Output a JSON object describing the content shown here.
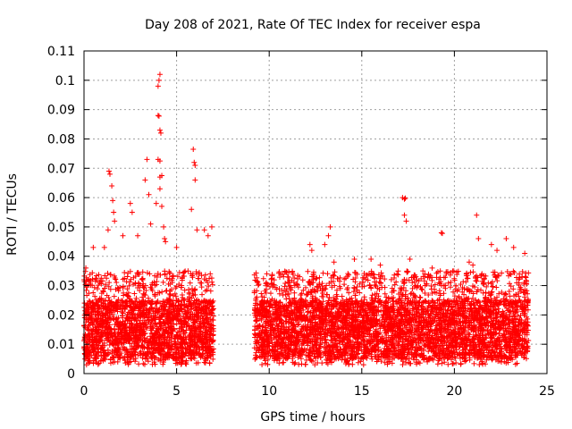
{
  "chart_data": {
    "type": "scatter",
    "title": "Day 208 of 2021, Rate Of TEC Index for receiver espa",
    "xlabel": "GPS time / hours",
    "ylabel": "ROTI / TECUs",
    "xlim": [
      0,
      25
    ],
    "ylim": [
      0,
      0.11
    ],
    "x_ticks": [
      0,
      5,
      10,
      15,
      20,
      25
    ],
    "x_tick_labels": [
      "0",
      "5",
      "10",
      "15",
      "20",
      "25"
    ],
    "y_ticks": [
      0,
      0.01,
      0.02,
      0.03,
      0.04,
      0.05,
      0.06,
      0.07,
      0.08,
      0.09,
      0.1,
      0.11
    ],
    "y_tick_labels": [
      "0",
      "0.01",
      "0.02",
      "0.03",
      "0.04",
      "0.05",
      "0.06",
      "0.07",
      "0.08",
      "0.09",
      "0.1",
      "0.11"
    ],
    "grid": true,
    "marker": "+",
    "color": "#ff0000",
    "series": [
      {
        "name": "ROTI",
        "segments": [
          {
            "x_range": [
              0.0,
              7.0
            ],
            "typical_range": [
              0.005,
              0.025
            ]
          },
          {
            "x_range": [
              9.2,
              24.0
            ],
            "typical_range": [
              0.005,
              0.025
            ]
          }
        ],
        "notable_points": [
          {
            "x": 0.1,
            "y": 0.036
          },
          {
            "x": 0.5,
            "y": 0.043
          },
          {
            "x": 1.3,
            "y": 0.049
          },
          {
            "x": 1.35,
            "y": 0.069
          },
          {
            "x": 1.4,
            "y": 0.068
          },
          {
            "x": 1.5,
            "y": 0.064
          },
          {
            "x": 1.55,
            "y": 0.059
          },
          {
            "x": 1.6,
            "y": 0.055
          },
          {
            "x": 1.65,
            "y": 0.052
          },
          {
            "x": 1.1,
            "y": 0.043
          },
          {
            "x": 2.1,
            "y": 0.047
          },
          {
            "x": 2.5,
            "y": 0.058
          },
          {
            "x": 2.6,
            "y": 0.055
          },
          {
            "x": 2.9,
            "y": 0.047
          },
          {
            "x": 3.3,
            "y": 0.066
          },
          {
            "x": 3.4,
            "y": 0.073
          },
          {
            "x": 3.5,
            "y": 0.061
          },
          {
            "x": 3.6,
            "y": 0.051
          },
          {
            "x": 3.9,
            "y": 0.058
          },
          {
            "x": 4.0,
            "y": 0.098
          },
          {
            "x": 4.05,
            "y": 0.1
          },
          {
            "x": 4.1,
            "y": 0.102
          },
          {
            "x": 4.0,
            "y": 0.088
          },
          {
            "x": 4.05,
            "y": 0.0878
          },
          {
            "x": 4.1,
            "y": 0.083
          },
          {
            "x": 4.15,
            "y": 0.082
          },
          {
            "x": 4.0,
            "y": 0.073
          },
          {
            "x": 4.1,
            "y": 0.0725
          },
          {
            "x": 4.1,
            "y": 0.067
          },
          {
            "x": 4.2,
            "y": 0.0675
          },
          {
            "x": 4.1,
            "y": 0.063
          },
          {
            "x": 4.2,
            "y": 0.057
          },
          {
            "x": 4.3,
            "y": 0.05
          },
          {
            "x": 4.35,
            "y": 0.046
          },
          {
            "x": 4.4,
            "y": 0.045
          },
          {
            "x": 5.0,
            "y": 0.043
          },
          {
            "x": 5.8,
            "y": 0.056
          },
          {
            "x": 5.9,
            "y": 0.0765
          },
          {
            "x": 5.95,
            "y": 0.072
          },
          {
            "x": 6.0,
            "y": 0.071
          },
          {
            "x": 6.0,
            "y": 0.066
          },
          {
            "x": 6.1,
            "y": 0.049
          },
          {
            "x": 6.5,
            "y": 0.049
          },
          {
            "x": 6.7,
            "y": 0.047
          },
          {
            "x": 6.9,
            "y": 0.05
          },
          {
            "x": 11.0,
            "y": 0.033
          },
          {
            "x": 12.2,
            "y": 0.044
          },
          {
            "x": 12.3,
            "y": 0.042
          },
          {
            "x": 13.0,
            "y": 0.044
          },
          {
            "x": 13.2,
            "y": 0.047
          },
          {
            "x": 13.3,
            "y": 0.05
          },
          {
            "x": 13.5,
            "y": 0.038
          },
          {
            "x": 14.6,
            "y": 0.039
          },
          {
            "x": 15.5,
            "y": 0.039
          },
          {
            "x": 16.0,
            "y": 0.037
          },
          {
            "x": 17.2,
            "y": 0.06
          },
          {
            "x": 17.3,
            "y": 0.0595
          },
          {
            "x": 17.35,
            "y": 0.0598
          },
          {
            "x": 17.3,
            "y": 0.054
          },
          {
            "x": 17.4,
            "y": 0.052
          },
          {
            "x": 17.6,
            "y": 0.039
          },
          {
            "x": 18.3,
            "y": 0.035
          },
          {
            "x": 18.8,
            "y": 0.036
          },
          {
            "x": 19.3,
            "y": 0.048
          },
          {
            "x": 19.35,
            "y": 0.0478
          },
          {
            "x": 20.8,
            "y": 0.038
          },
          {
            "x": 21.0,
            "y": 0.037
          },
          {
            "x": 21.2,
            "y": 0.054
          },
          {
            "x": 21.3,
            "y": 0.046
          },
          {
            "x": 22.0,
            "y": 0.044
          },
          {
            "x": 22.3,
            "y": 0.042
          },
          {
            "x": 22.8,
            "y": 0.046
          },
          {
            "x": 23.2,
            "y": 0.043
          },
          {
            "x": 23.8,
            "y": 0.041
          }
        ]
      }
    ]
  }
}
